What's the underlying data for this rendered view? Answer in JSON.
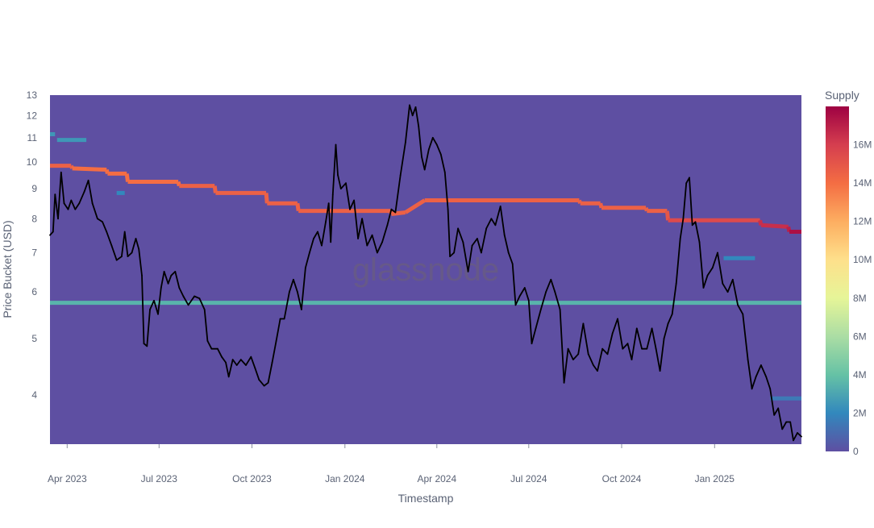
{
  "chart_data": {
    "type": "heatmap",
    "title": "",
    "xlabel": "Timestamp",
    "ylabel": "Price Bucket (USD)",
    "y_scale": "log",
    "ylim": [
      3.3,
      13
    ],
    "xlim": [
      "2023-03-15",
      "2025-03-28"
    ],
    "y_ticks": [
      4,
      5,
      6,
      7,
      8,
      9,
      10,
      11,
      12,
      13
    ],
    "x_ticks": [
      {
        "date": "2023-04-01",
        "label": "Apr 2023"
      },
      {
        "date": "2023-07-01",
        "label": "Jul 2023"
      },
      {
        "date": "2023-10-01",
        "label": "Oct 2023"
      },
      {
        "date": "2024-01-01",
        "label": "Jan 2024"
      },
      {
        "date": "2024-04-01",
        "label": "Apr 2024"
      },
      {
        "date": "2024-07-01",
        "label": "Jul 2024"
      },
      {
        "date": "2024-10-01",
        "label": "Oct 2024"
      },
      {
        "date": "2025-01-01",
        "label": "Jan 2025"
      }
    ],
    "colorbar": {
      "title": "Supply",
      "range": [
        0,
        18000000
      ],
      "ticks": [
        {
          "value": 0,
          "label": "0"
        },
        {
          "value": 2000000,
          "label": "2M"
        },
        {
          "value": 4000000,
          "label": "4M"
        },
        {
          "value": 6000000,
          "label": "6M"
        },
        {
          "value": 8000000,
          "label": "8M"
        },
        {
          "value": 10000000,
          "label": "10M"
        },
        {
          "value": 12000000,
          "label": "12M"
        },
        {
          "value": 14000000,
          "label": "14M"
        },
        {
          "value": 16000000,
          "label": "16M"
        }
      ],
      "colorscale": [
        "#5e4fa2",
        "#3288bd",
        "#66c2a5",
        "#abdda4",
        "#e6f598",
        "#fee08b",
        "#fdae61",
        "#f46d43",
        "#d53e4f",
        "#9e0142"
      ]
    },
    "background_supply": 0,
    "bands": [
      {
        "points": [
          [
            "2023-03-15",
            9.85,
            14500000
          ],
          [
            "2023-04-05",
            9.85,
            14500000
          ],
          [
            "2023-04-06",
            9.75,
            14000000
          ],
          [
            "2023-05-10",
            9.7,
            14000000
          ],
          [
            "2023-05-11",
            9.55,
            14000000
          ],
          [
            "2023-05-30",
            9.55,
            14000000
          ],
          [
            "2023-05-31",
            9.25,
            14000000
          ],
          [
            "2023-07-20",
            9.25,
            14000000
          ],
          [
            "2023-07-21",
            9.1,
            14500000
          ],
          [
            "2023-08-25",
            9.1,
            14500000
          ],
          [
            "2023-08-26",
            8.85,
            14500000
          ],
          [
            "2023-10-15",
            8.85,
            14500000
          ],
          [
            "2023-10-16",
            8.5,
            14500000
          ],
          [
            "2023-11-15",
            8.5,
            14500000
          ],
          [
            "2023-11-16",
            8.25,
            14500000
          ],
          [
            "2024-02-15",
            8.25,
            14500000
          ],
          [
            "2024-02-16",
            8.15,
            14500000
          ],
          [
            "2024-03-01",
            8.2,
            14500000
          ],
          [
            "2024-03-20",
            8.6,
            14500000
          ],
          [
            "2024-08-20",
            8.6,
            14500000
          ],
          [
            "2024-08-21",
            8.5,
            14500000
          ],
          [
            "2024-09-10",
            8.5,
            14500000
          ],
          [
            "2024-09-11",
            8.35,
            14500000
          ],
          [
            "2024-10-25",
            8.35,
            14500000
          ],
          [
            "2024-10-26",
            8.25,
            14500000
          ],
          [
            "2024-11-15",
            8.25,
            15000000
          ],
          [
            "2024-11-16",
            7.95,
            15500000
          ],
          [
            "2025-02-15",
            7.95,
            16500000
          ],
          [
            "2025-02-16",
            7.8,
            16500000
          ],
          [
            "2025-03-15",
            7.75,
            17000000
          ],
          [
            "2025-03-16",
            7.6,
            17500000
          ],
          [
            "2025-03-28",
            7.6,
            17500000
          ]
        ]
      },
      {
        "points": [
          [
            "2023-03-15",
            5.75,
            3500000
          ],
          [
            "2025-03-28",
            5.75,
            3500000
          ]
        ]
      },
      {
        "points": [
          [
            "2023-03-15",
            11.15,
            2500000
          ],
          [
            "2023-03-20",
            11.15,
            2500000
          ]
        ]
      },
      {
        "points": [
          [
            "2023-03-22",
            10.9,
            2500000
          ],
          [
            "2023-04-20",
            10.9,
            2500000
          ]
        ]
      },
      {
        "points": [
          [
            "2023-05-20",
            8.85,
            2000000
          ],
          [
            "2023-05-28",
            8.85,
            2000000
          ]
        ]
      },
      {
        "points": [
          [
            "2025-01-10",
            6.85,
            2000000
          ],
          [
            "2025-02-10",
            6.85,
            2000000
          ]
        ]
      },
      {
        "points": [
          [
            "2025-02-25",
            3.95,
            1500000
          ],
          [
            "2025-03-28",
            3.95,
            1500000
          ]
        ]
      }
    ],
    "series": [
      {
        "type": "line",
        "color": "#000000",
        "points": [
          [
            "2023-03-15",
            7.5
          ],
          [
            "2023-03-18",
            7.6
          ],
          [
            "2023-03-20",
            8.8
          ],
          [
            "2023-03-23",
            8.0
          ],
          [
            "2023-03-26",
            9.6
          ],
          [
            "2023-03-29",
            8.5
          ],
          [
            "2023-04-02",
            8.3
          ],
          [
            "2023-04-05",
            8.6
          ],
          [
            "2023-04-09",
            8.3
          ],
          [
            "2023-04-13",
            8.5
          ],
          [
            "2023-04-18",
            8.9
          ],
          [
            "2023-04-22",
            9.3
          ],
          [
            "2023-04-26",
            8.5
          ],
          [
            "2023-05-01",
            8.0
          ],
          [
            "2023-05-06",
            7.9
          ],
          [
            "2023-05-10",
            7.6
          ],
          [
            "2023-05-15",
            7.2
          ],
          [
            "2023-05-20",
            6.8
          ],
          [
            "2023-05-25",
            6.9
          ],
          [
            "2023-05-28",
            7.6
          ],
          [
            "2023-05-31",
            6.9
          ],
          [
            "2023-06-04",
            7.0
          ],
          [
            "2023-06-08",
            7.4
          ],
          [
            "2023-06-11",
            7.1
          ],
          [
            "2023-06-14",
            6.4
          ],
          [
            "2023-06-16",
            4.9
          ],
          [
            "2023-06-19",
            4.85
          ],
          [
            "2023-06-22",
            5.6
          ],
          [
            "2023-06-26",
            5.8
          ],
          [
            "2023-06-30",
            5.5
          ],
          [
            "2023-07-03",
            6.1
          ],
          [
            "2023-07-06",
            6.5
          ],
          [
            "2023-07-10",
            6.2
          ],
          [
            "2023-07-13",
            6.4
          ],
          [
            "2023-07-17",
            6.5
          ],
          [
            "2023-07-21",
            6.1
          ],
          [
            "2023-07-25",
            5.9
          ],
          [
            "2023-07-30",
            5.7
          ],
          [
            "2023-08-05",
            5.9
          ],
          [
            "2023-08-10",
            5.85
          ],
          [
            "2023-08-15",
            5.6
          ],
          [
            "2023-08-18",
            4.95
          ],
          [
            "2023-08-22",
            4.8
          ],
          [
            "2023-08-28",
            4.8
          ],
          [
            "2023-09-01",
            4.65
          ],
          [
            "2023-09-05",
            4.55
          ],
          [
            "2023-09-08",
            4.3
          ],
          [
            "2023-09-12",
            4.6
          ],
          [
            "2023-09-16",
            4.5
          ],
          [
            "2023-09-20",
            4.6
          ],
          [
            "2023-09-25",
            4.5
          ],
          [
            "2023-09-30",
            4.65
          ],
          [
            "2023-10-04",
            4.45
          ],
          [
            "2023-10-08",
            4.25
          ],
          [
            "2023-10-13",
            4.15
          ],
          [
            "2023-10-17",
            4.2
          ],
          [
            "2023-10-21",
            4.55
          ],
          [
            "2023-10-25",
            4.95
          ],
          [
            "2023-10-29",
            5.4
          ],
          [
            "2023-11-02",
            5.4
          ],
          [
            "2023-11-07",
            6.0
          ],
          [
            "2023-11-11",
            6.3
          ],
          [
            "2023-11-15",
            6.0
          ],
          [
            "2023-11-19",
            5.6
          ],
          [
            "2023-11-23",
            6.6
          ],
          [
            "2023-11-27",
            7.0
          ],
          [
            "2023-12-01",
            7.4
          ],
          [
            "2023-12-05",
            7.6
          ],
          [
            "2023-12-09",
            7.2
          ],
          [
            "2023-12-13",
            7.9
          ],
          [
            "2023-12-16",
            8.5
          ],
          [
            "2023-12-18",
            7.3
          ],
          [
            "2023-12-20",
            8.8
          ],
          [
            "2023-12-23",
            10.7
          ],
          [
            "2023-12-25",
            9.5
          ],
          [
            "2023-12-28",
            9.0
          ],
          [
            "2024-01-02",
            9.2
          ],
          [
            "2024-01-06",
            8.3
          ],
          [
            "2024-01-10",
            8.6
          ],
          [
            "2024-01-14",
            7.4
          ],
          [
            "2024-01-18",
            8.0
          ],
          [
            "2024-01-23",
            7.2
          ],
          [
            "2024-01-28",
            7.5
          ],
          [
            "2024-02-02",
            7.0
          ],
          [
            "2024-02-07",
            7.3
          ],
          [
            "2024-02-12",
            7.8
          ],
          [
            "2024-02-16",
            8.3
          ],
          [
            "2024-02-20",
            8.2
          ],
          [
            "2024-02-25",
            9.5
          ],
          [
            "2024-03-01",
            10.8
          ],
          [
            "2024-03-05",
            12.5
          ],
          [
            "2024-03-08",
            12.0
          ],
          [
            "2024-03-11",
            12.4
          ],
          [
            "2024-03-14",
            11.5
          ],
          [
            "2024-03-17",
            10.2
          ],
          [
            "2024-03-20",
            9.7
          ],
          [
            "2024-03-24",
            10.5
          ],
          [
            "2024-03-28",
            11.0
          ],
          [
            "2024-04-01",
            10.7
          ],
          [
            "2024-04-05",
            10.3
          ],
          [
            "2024-04-09",
            9.6
          ],
          [
            "2024-04-12",
            8.3
          ],
          [
            "2024-04-14",
            6.9
          ],
          [
            "2024-04-18",
            7.0
          ],
          [
            "2024-04-22",
            7.7
          ],
          [
            "2024-04-27",
            7.3
          ],
          [
            "2024-05-02",
            6.5
          ],
          [
            "2024-05-06",
            7.2
          ],
          [
            "2024-05-11",
            7.4
          ],
          [
            "2024-05-15",
            7.0
          ],
          [
            "2024-05-20",
            7.7
          ],
          [
            "2024-05-25",
            8.0
          ],
          [
            "2024-05-29",
            7.8
          ],
          [
            "2024-06-03",
            8.4
          ],
          [
            "2024-06-07",
            7.5
          ],
          [
            "2024-06-11",
            7.0
          ],
          [
            "2024-06-15",
            6.7
          ],
          [
            "2024-06-18",
            5.7
          ],
          [
            "2024-06-22",
            5.9
          ],
          [
            "2024-06-27",
            6.1
          ],
          [
            "2024-07-01",
            5.8
          ],
          [
            "2024-07-04",
            4.9
          ],
          [
            "2024-07-08",
            5.2
          ],
          [
            "2024-07-13",
            5.6
          ],
          [
            "2024-07-18",
            6.0
          ],
          [
            "2024-07-23",
            6.3
          ],
          [
            "2024-07-27",
            6.0
          ],
          [
            "2024-08-01",
            5.6
          ],
          [
            "2024-08-05",
            4.2
          ],
          [
            "2024-08-09",
            4.8
          ],
          [
            "2024-08-14",
            4.6
          ],
          [
            "2024-08-19",
            4.7
          ],
          [
            "2024-08-24",
            5.3
          ],
          [
            "2024-08-29",
            4.7
          ],
          [
            "2024-09-03",
            4.5
          ],
          [
            "2024-09-07",
            4.4
          ],
          [
            "2024-09-12",
            4.8
          ],
          [
            "2024-09-17",
            4.7
          ],
          [
            "2024-09-22",
            5.1
          ],
          [
            "2024-09-27",
            5.4
          ],
          [
            "2024-10-02",
            4.8
          ],
          [
            "2024-10-07",
            4.9
          ],
          [
            "2024-10-11",
            4.6
          ],
          [
            "2024-10-16",
            5.2
          ],
          [
            "2024-10-21",
            4.8
          ],
          [
            "2024-10-26",
            4.8
          ],
          [
            "2024-10-31",
            5.2
          ],
          [
            "2024-11-04",
            4.8
          ],
          [
            "2024-11-08",
            4.4
          ],
          [
            "2024-11-12",
            5.0
          ],
          [
            "2024-11-16",
            5.3
          ],
          [
            "2024-11-20",
            5.5
          ],
          [
            "2024-11-24",
            6.2
          ],
          [
            "2024-11-28",
            7.4
          ],
          [
            "2024-12-01",
            8.0
          ],
          [
            "2024-12-04",
            9.2
          ],
          [
            "2024-12-07",
            9.4
          ],
          [
            "2024-12-10",
            7.8
          ],
          [
            "2024-12-13",
            7.9
          ],
          [
            "2024-12-17",
            7.3
          ],
          [
            "2024-12-21",
            6.1
          ],
          [
            "2024-12-25",
            6.4
          ],
          [
            "2024-12-30",
            6.6
          ],
          [
            "2025-01-04",
            7.0
          ],
          [
            "2025-01-09",
            6.2
          ],
          [
            "2025-01-14",
            6.0
          ],
          [
            "2025-01-19",
            6.3
          ],
          [
            "2025-01-24",
            5.7
          ],
          [
            "2025-01-29",
            5.5
          ],
          [
            "2025-02-03",
            4.6
          ],
          [
            "2025-02-07",
            4.1
          ],
          [
            "2025-02-11",
            4.3
          ],
          [
            "2025-02-16",
            4.5
          ],
          [
            "2025-02-21",
            4.3
          ],
          [
            "2025-02-25",
            4.1
          ],
          [
            "2025-03-01",
            3.7
          ],
          [
            "2025-03-05",
            3.8
          ],
          [
            "2025-03-09",
            3.5
          ],
          [
            "2025-03-13",
            3.6
          ],
          [
            "2025-03-17",
            3.6
          ],
          [
            "2025-03-20",
            3.35
          ],
          [
            "2025-03-24",
            3.45
          ],
          [
            "2025-03-28",
            3.4
          ]
        ]
      }
    ],
    "watermark": "glassnode"
  }
}
